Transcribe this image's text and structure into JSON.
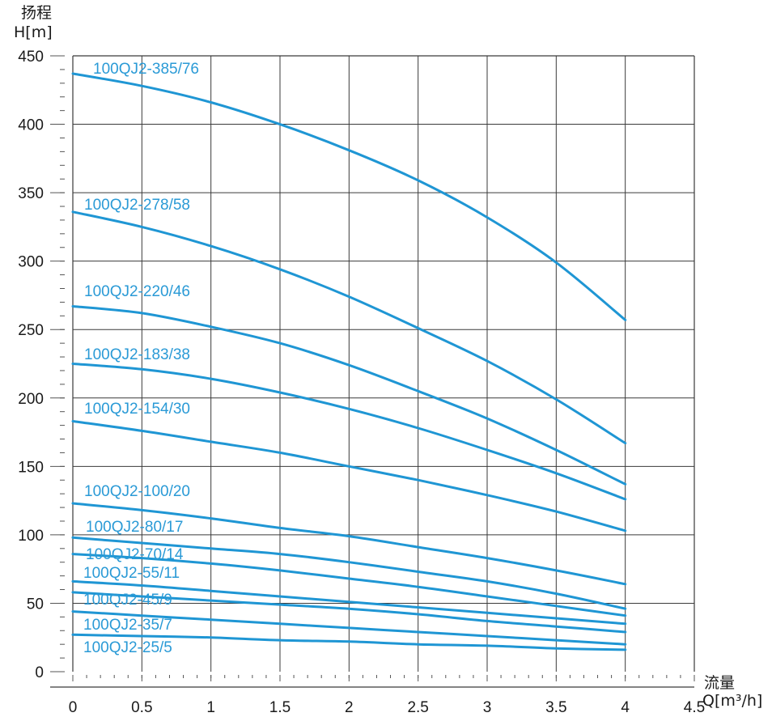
{
  "chart_data": {
    "type": "line",
    "ylabel_cn": "扬程",
    "ylabel": "H[m]",
    "xlabel_cn": "流量",
    "xlabel": "Q[m³/h]",
    "xlim": [
      0,
      4.5
    ],
    "ylim": [
      0,
      450
    ],
    "x_ticks": [
      "0",
      "0.5",
      "1",
      "1.5",
      "2",
      "2.5",
      "3",
      "3.5",
      "4",
      "4.5"
    ],
    "y_ticks": [
      "0",
      "50",
      "100",
      "150",
      "200",
      "250",
      "300",
      "350",
      "400",
      "450"
    ],
    "grid": true,
    "colors": {
      "series": "#1f96d4",
      "label": "#2a9ad6",
      "grid": "#3a3a3a"
    },
    "x": [
      0,
      0.5,
      1,
      1.5,
      2,
      2.5,
      3,
      3.5,
      4
    ],
    "series": [
      {
        "name": "100QJ2-385/76",
        "values": [
          437,
          428,
          416,
          400,
          381,
          359,
          332,
          299,
          257
        ]
      },
      {
        "name": "100QJ2-278/58",
        "values": [
          336,
          325,
          311,
          294,
          274,
          251,
          227,
          199,
          167
        ]
      },
      {
        "name": "100QJ2-220/46",
        "values": [
          267,
          262,
          252,
          240,
          224,
          205,
          185,
          162,
          137
        ]
      },
      {
        "name": "100QJ2-183/38",
        "values": [
          225,
          221,
          214,
          204,
          192,
          178,
          162,
          145,
          126
        ]
      },
      {
        "name": "100QJ2-154/30",
        "values": [
          183,
          176,
          168,
          160,
          150,
          140,
          129,
          117,
          103
        ]
      },
      {
        "name": "100QJ2-100/20",
        "values": [
          123,
          118,
          112,
          105,
          99,
          91,
          83,
          74,
          64
        ]
      },
      {
        "name": "100QJ2-80/17",
        "values": [
          98,
          94,
          90,
          86,
          80,
          73,
          66,
          57,
          46
        ]
      },
      {
        "name": "100QJ2-70/14",
        "values": [
          86,
          83,
          79,
          74,
          68,
          62,
          55,
          48,
          41
        ]
      },
      {
        "name": "100QJ2-55/11",
        "values": [
          66,
          63,
          59,
          55,
          51,
          47,
          43,
          39,
          35
        ]
      },
      {
        "name": "100QJ2-45/9",
        "values": [
          58,
          55,
          52,
          49,
          46,
          42,
          37,
          33,
          29
        ]
      },
      {
        "name": "100QJ2-35/7",
        "values": [
          44,
          41,
          38,
          35,
          32,
          29,
          26,
          23,
          20
        ]
      },
      {
        "name": "100QJ2-25/5",
        "values": [
          27,
          26,
          25,
          23,
          22,
          20,
          19,
          17,
          16
        ]
      }
    ]
  }
}
